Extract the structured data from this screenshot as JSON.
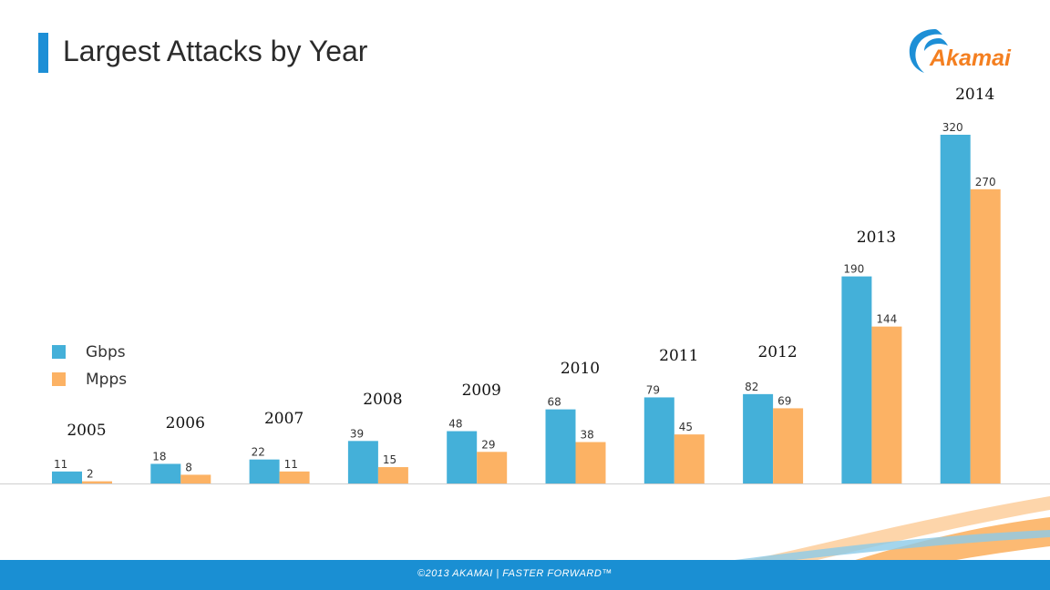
{
  "title": "Largest Attacks by Year",
  "logo_text": "Akamai",
  "footer_text": "©2013 AKAMAI  |  FASTER FORWARD™",
  "colors": {
    "gbps": "#44b0d9",
    "mpps": "#fcb264",
    "accent": "#1d8fd6",
    "footer": "#1a8fd3"
  },
  "legend": [
    {
      "label": "Gbps",
      "series": "gbps"
    },
    {
      "label": "Mpps",
      "series": "mpps"
    }
  ],
  "chart_data": {
    "type": "bar",
    "categories": [
      "2005",
      "2006",
      "2007",
      "2008",
      "2009",
      "2010",
      "2011",
      "2012",
      "2013",
      "2014"
    ],
    "series": [
      {
        "name": "Gbps",
        "values": [
          11,
          18,
          22,
          39,
          48,
          68,
          79,
          82,
          190,
          320
        ]
      },
      {
        "name": "Mpps",
        "values": [
          2,
          8,
          11,
          15,
          29,
          38,
          45,
          69,
          144,
          270
        ]
      }
    ],
    "title": "Largest Attacks by Year",
    "ylim": [
      0,
      320
    ],
    "grid": false,
    "legend_position": "left"
  }
}
